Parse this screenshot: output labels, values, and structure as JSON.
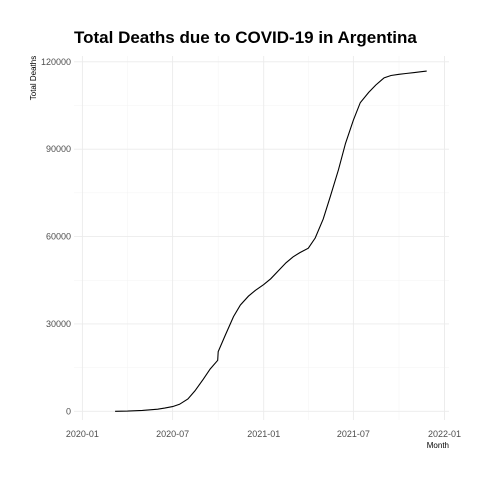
{
  "chart_data": {
    "type": "line",
    "title": "Total Deaths due to COVID-19 in Argentina",
    "xlabel": "Month",
    "ylabel": "Total Deaths",
    "x_ticks": [
      "2020-01",
      "2020-07",
      "2021-01",
      "2021-07",
      "2022-01"
    ],
    "y_ticks": [
      0,
      30000,
      60000,
      90000,
      120000
    ],
    "xlim": [
      "2019-12-15",
      "2022-01-10"
    ],
    "ylim": [
      -3000,
      122000
    ],
    "grid": true,
    "legend": "none",
    "series": [
      {
        "color": "#000000",
        "x": [
          "2020-03-07",
          "2020-04-01",
          "2020-05-01",
          "2020-06-01",
          "2020-06-15",
          "2020-07-01",
          "2020-07-15",
          "2020-08-01",
          "2020-08-15",
          "2020-09-01",
          "2020-09-15",
          "2020-09-30",
          "2020-10-01",
          "2020-10-15",
          "2020-11-01",
          "2020-11-15",
          "2020-12-01",
          "2020-12-15",
          "2021-01-01",
          "2021-01-15",
          "2021-02-01",
          "2021-02-15",
          "2021-03-01",
          "2021-03-15",
          "2021-04-01",
          "2021-04-15",
          "2021-05-01",
          "2021-05-15",
          "2021-06-01",
          "2021-06-15",
          "2021-07-01",
          "2021-07-15",
          "2021-08-01",
          "2021-08-15",
          "2021-09-01",
          "2021-09-15",
          "2021-10-01",
          "2021-10-15",
          "2021-11-01",
          "2021-11-15",
          "2021-11-26"
        ],
        "y": [
          0,
          50,
          300,
          700,
          1100,
          1600,
          2400,
          4200,
          7000,
          11000,
          14500,
          17500,
          20500,
          26000,
          32500,
          36500,
          39500,
          41500,
          43500,
          45500,
          48500,
          51000,
          53000,
          54500,
          56000,
          59500,
          66000,
          73500,
          83000,
          92000,
          100000,
          106000,
          109500,
          112000,
          114500,
          115300,
          115700,
          116000,
          116300,
          116600,
          116800
        ]
      }
    ]
  }
}
